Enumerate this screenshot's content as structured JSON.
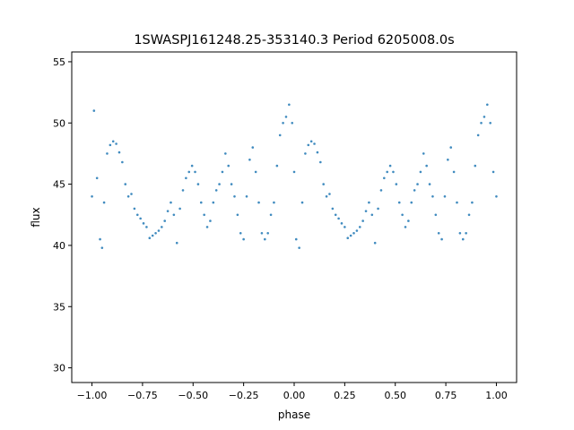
{
  "chart_data": {
    "type": "scatter",
    "title": "1SWASPJ161248.25-353140.3 Period 6205008.0s",
    "xlabel": "phase",
    "ylabel": "flux",
    "xlim": [
      -1.1,
      1.1
    ],
    "ylim": [
      28.8,
      55.8
    ],
    "xticks": [
      -1.0,
      -0.75,
      -0.5,
      -0.25,
      0.0,
      0.25,
      0.5,
      0.75,
      1.0
    ],
    "xtick_labels": [
      "−1.00",
      "−0.75",
      "−0.50",
      "−0.25",
      "0.00",
      "0.25",
      "0.50",
      "0.75",
      "1.00"
    ],
    "yticks": [
      30,
      35,
      40,
      45,
      50,
      55
    ],
    "ytick_labels": [
      "30",
      "35",
      "40",
      "45",
      "50",
      "55"
    ],
    "grid": false,
    "point_color": "#1f77b4",
    "series": [
      {
        "x": [
          -1.0,
          -0.99,
          -0.975,
          -0.96,
          -0.95,
          -0.94,
          -0.925,
          -0.91,
          -0.895,
          -0.88,
          -0.865,
          -0.85,
          -0.835,
          -0.82,
          -0.805,
          -0.79,
          -0.775,
          -0.76,
          -0.745,
          -0.73,
          -0.715,
          -0.7,
          -0.685,
          -0.67,
          -0.655,
          -0.64,
          -0.625,
          -0.61,
          -0.595,
          -0.58,
          -0.565,
          -0.55,
          -0.535,
          -0.52,
          -0.505,
          -0.49,
          -0.475,
          -0.46,
          -0.445,
          -0.43,
          -0.415,
          -0.4,
          -0.385,
          -0.37,
          -0.355,
          -0.34,
          -0.325,
          -0.31,
          -0.295,
          -0.28,
          -0.265,
          -0.25,
          -0.235,
          -0.22,
          -0.205,
          -0.19,
          -0.175,
          -0.16,
          -0.145,
          -0.13,
          -0.115,
          -0.1,
          -0.085,
          -0.07,
          -0.055,
          -0.04,
          -0.025,
          -0.01,
          0.0,
          0.01,
          0.025,
          0.04,
          0.055,
          0.07,
          0.085,
          0.1,
          0.115,
          0.13,
          0.145,
          0.16,
          0.175,
          0.19,
          0.205,
          0.22,
          0.235,
          0.25,
          0.265,
          0.28,
          0.295,
          0.31,
          0.325,
          0.34,
          0.355,
          0.37,
          0.385,
          0.4,
          0.415,
          0.43,
          0.445,
          0.46,
          0.475,
          0.49,
          0.505,
          0.52,
          0.535,
          0.55,
          0.565,
          0.58,
          0.595,
          0.61,
          0.625,
          0.64,
          0.655,
          0.67,
          0.685,
          0.7,
          0.715,
          0.73,
          0.745,
          0.76,
          0.775,
          0.79,
          0.805,
          0.82,
          0.835,
          0.85,
          0.865,
          0.88,
          0.895,
          0.91,
          0.925,
          0.94,
          0.955,
          0.97,
          0.985,
          1.0
        ],
        "y": [
          44.0,
          51.0,
          45.5,
          40.5,
          39.8,
          43.5,
          47.5,
          48.2,
          48.5,
          48.3,
          47.6,
          46.8,
          45.0,
          44.0,
          44.2,
          43.0,
          42.5,
          42.2,
          41.8,
          41.5,
          40.6,
          40.8,
          41.0,
          41.2,
          41.5,
          42.0,
          42.8,
          43.5,
          42.5,
          40.2,
          43.0,
          44.5,
          45.5,
          46.0,
          46.5,
          46.0,
          45.0,
          43.5,
          42.5,
          41.5,
          42.0,
          43.5,
          44.5,
          45.0,
          46.0,
          47.5,
          46.5,
          45.0,
          44.0,
          42.5,
          41.0,
          40.5,
          44.0,
          47.0,
          48.0,
          46.0,
          43.5,
          41.0,
          40.5,
          41.0,
          42.5,
          43.5,
          46.5,
          49.0,
          50.0,
          50.5,
          51.5,
          50.0,
          46.0,
          40.5,
          39.8,
          43.5,
          47.5,
          48.2,
          48.5,
          48.3,
          47.6,
          46.8,
          45.0,
          44.0,
          44.2,
          43.0,
          42.5,
          42.2,
          41.8,
          41.5,
          40.6,
          40.8,
          41.0,
          41.2,
          41.5,
          42.0,
          42.8,
          43.5,
          42.5,
          40.2,
          43.0,
          44.5,
          45.5,
          46.0,
          46.5,
          46.0,
          45.0,
          43.5,
          42.5,
          41.5,
          42.0,
          43.5,
          44.5,
          45.0,
          46.0,
          47.5,
          46.5,
          45.0,
          44.0,
          42.5,
          41.0,
          40.5,
          44.0,
          47.0,
          48.0,
          46.0,
          43.5,
          41.0,
          40.5,
          41.0,
          42.5,
          43.5,
          46.5,
          49.0,
          50.0,
          50.5,
          51.5,
          50.0,
          46.0,
          44.0
        ]
      }
    ]
  }
}
